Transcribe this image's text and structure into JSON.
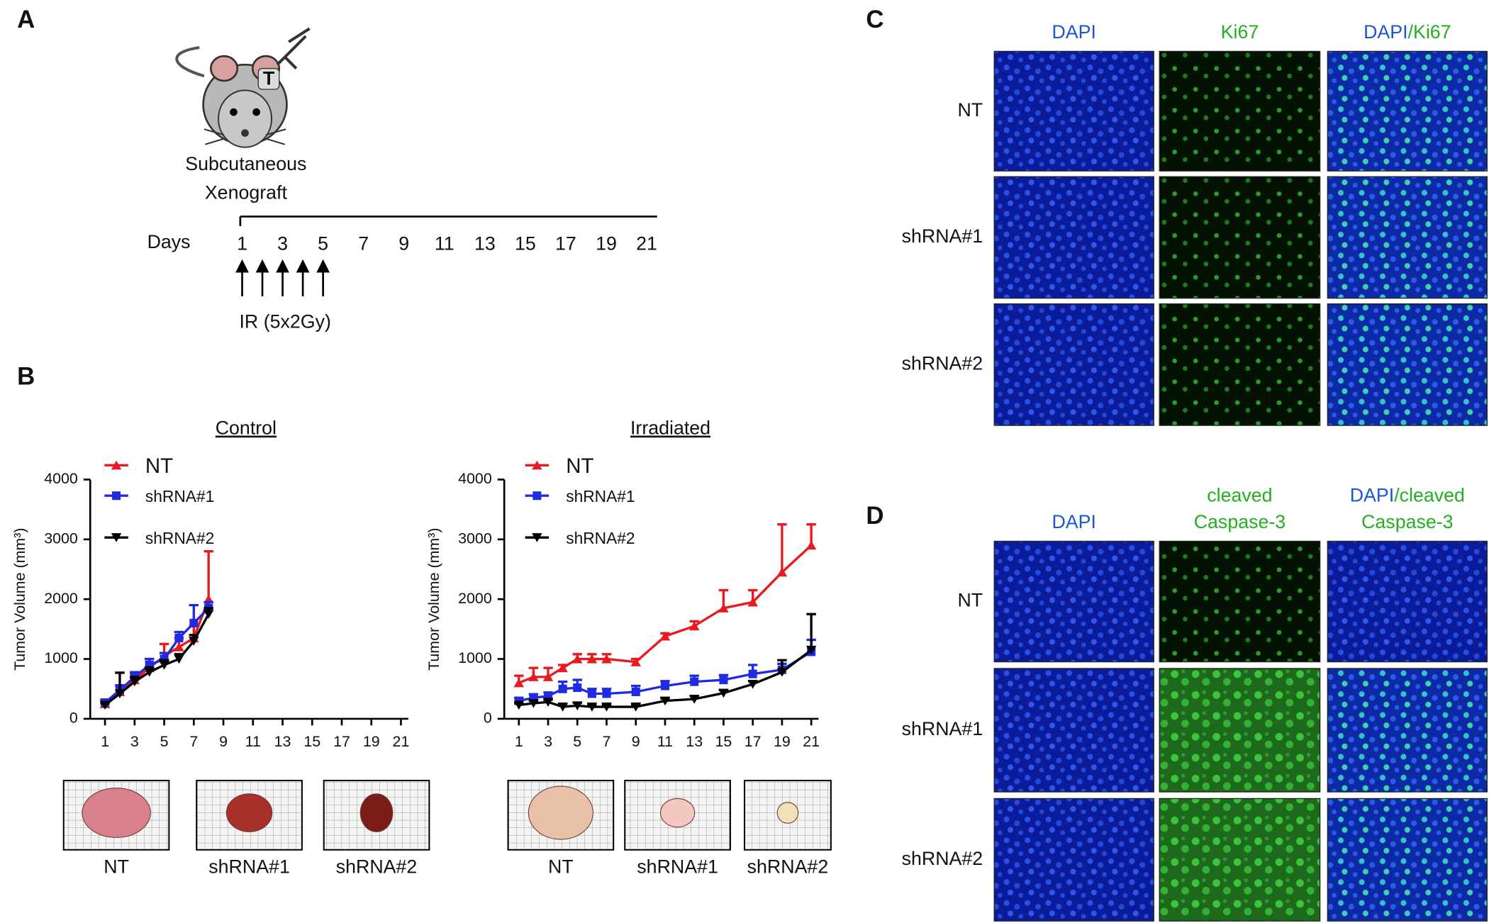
{
  "panel_labels": [
    "A",
    "B",
    "C",
    "D"
  ],
  "panel_a": {
    "subtitle": [
      "Subcutaneous",
      "Xenograft"
    ],
    "mouse_label": "T",
    "days_label": "Days",
    "days": [
      1,
      3,
      5,
      7,
      9,
      11,
      13,
      15,
      17,
      19,
      21
    ],
    "ir_label": "IR (5x2Gy)"
  },
  "chart_data": [
    {
      "type": "line",
      "title": "Control",
      "ylabel": "Tumor Volume (mm³)",
      "x": [
        1,
        2,
        3,
        4,
        5,
        6,
        7,
        8
      ],
      "xlim": [
        0,
        21.5
      ],
      "xticks": [
        1,
        3,
        5,
        7,
        9,
        11,
        13,
        15,
        17,
        19,
        21
      ],
      "ylim": [
        0,
        4000
      ],
      "yticks": [
        0,
        1000,
        2000,
        3000,
        4000
      ],
      "series": [
        {
          "name": "NT",
          "color": "#e8191f",
          "marker": "triangle-up",
          "values": [
            250,
            450,
            650,
            850,
            1050,
            1200,
            1350,
            2000
          ],
          "errors": [
            50,
            100,
            100,
            150,
            200,
            150,
            200,
            800
          ]
        },
        {
          "name": "shRNA#1",
          "color": "#1f2be0",
          "marker": "square",
          "values": [
            270,
            480,
            700,
            900,
            1000,
            1350,
            1600,
            1850
          ],
          "errors": [
            50,
            80,
            80,
            100,
            100,
            100,
            300,
            100
          ]
        },
        {
          "name": "shRNA#2",
          "color": "#000000",
          "marker": "triangle-down",
          "values": [
            230,
            420,
            620,
            780,
            900,
            1000,
            1300,
            1750
          ],
          "errors": [
            30,
            350,
            80,
            80,
            80,
            80,
            100,
            100
          ]
        }
      ]
    },
    {
      "type": "line",
      "title": "Irradiated",
      "ylabel": "Tumor Volume (mm³)",
      "x": [
        1,
        2,
        3,
        4,
        5,
        6,
        7,
        9,
        11,
        13,
        15,
        17,
        19,
        21
      ],
      "xlim": [
        0,
        21.5
      ],
      "xticks": [
        1,
        3,
        5,
        7,
        9,
        11,
        13,
        15,
        17,
        19,
        21
      ],
      "ylim": [
        0,
        4000
      ],
      "yticks": [
        0,
        1000,
        2000,
        3000,
        4000
      ],
      "series": [
        {
          "name": "NT",
          "color": "#e8191f",
          "marker": "triangle-up",
          "values": [
            600,
            700,
            700,
            850,
            1000,
            1000,
            1000,
            950,
            1380,
            1550,
            1850,
            1950,
            2450,
            2900
          ],
          "errors": [
            120,
            150,
            150,
            50,
            80,
            80,
            80,
            50,
            50,
            80,
            300,
            200,
            800,
            350
          ]
        },
        {
          "name": "shRNA#1",
          "color": "#1f2be0",
          "marker": "square",
          "values": [
            300,
            350,
            380,
            500,
            520,
            420,
            420,
            450,
            550,
            620,
            650,
            750,
            820,
            1120
          ],
          "errors": [
            50,
            60,
            60,
            120,
            130,
            80,
            80,
            100,
            80,
            100,
            80,
            150,
            100,
            200
          ]
        },
        {
          "name": "shRNA#2",
          "color": "#000000",
          "marker": "triangle-down",
          "values": [
            230,
            260,
            280,
            200,
            220,
            200,
            200,
            200,
            300,
            330,
            430,
            580,
            780,
            1150
          ],
          "errors": [
            30,
            40,
            40,
            50,
            50,
            40,
            40,
            40,
            40,
            50,
            50,
            50,
            200,
            600
          ]
        }
      ]
    }
  ],
  "tumor_photos": [
    [
      "NT",
      "shRNA#1",
      "shRNA#2"
    ],
    [
      "NT",
      "shRNA#1",
      "shRNA#2"
    ]
  ],
  "panel_c": {
    "rows": [
      "NT",
      "shRNA#1",
      "shRNA#2"
    ],
    "columns": [
      [
        [
          {
            "text": "DAPI",
            "color": "#1a56d6"
          }
        ]
      ],
      [
        [
          {
            "text": "Ki67",
            "color": "#22b022"
          }
        ]
      ],
      [
        [
          {
            "text": "DAPI",
            "color": "#1a56d6"
          },
          {
            "text": "/Ki67",
            "color": "#22b022"
          }
        ]
      ]
    ]
  },
  "panel_d": {
    "rows": [
      "NT",
      "shRNA#1",
      "shRNA#2"
    ],
    "columns": [
      [
        [
          {
            "text": "DAPI",
            "color": "#1a56d6"
          }
        ]
      ],
      [
        [
          {
            "text": "cleaved",
            "color": "#22b022"
          }
        ],
        [
          {
            "text": "Caspase-3",
            "color": "#22b022"
          }
        ]
      ],
      [
        [
          {
            "text": "DAPI",
            "color": "#1a56d6"
          },
          {
            "text": "/cleaved",
            "color": "#22b022"
          }
        ],
        [
          {
            "text": "Caspase-3",
            "color": "#22b022"
          }
        ]
      ]
    ]
  }
}
